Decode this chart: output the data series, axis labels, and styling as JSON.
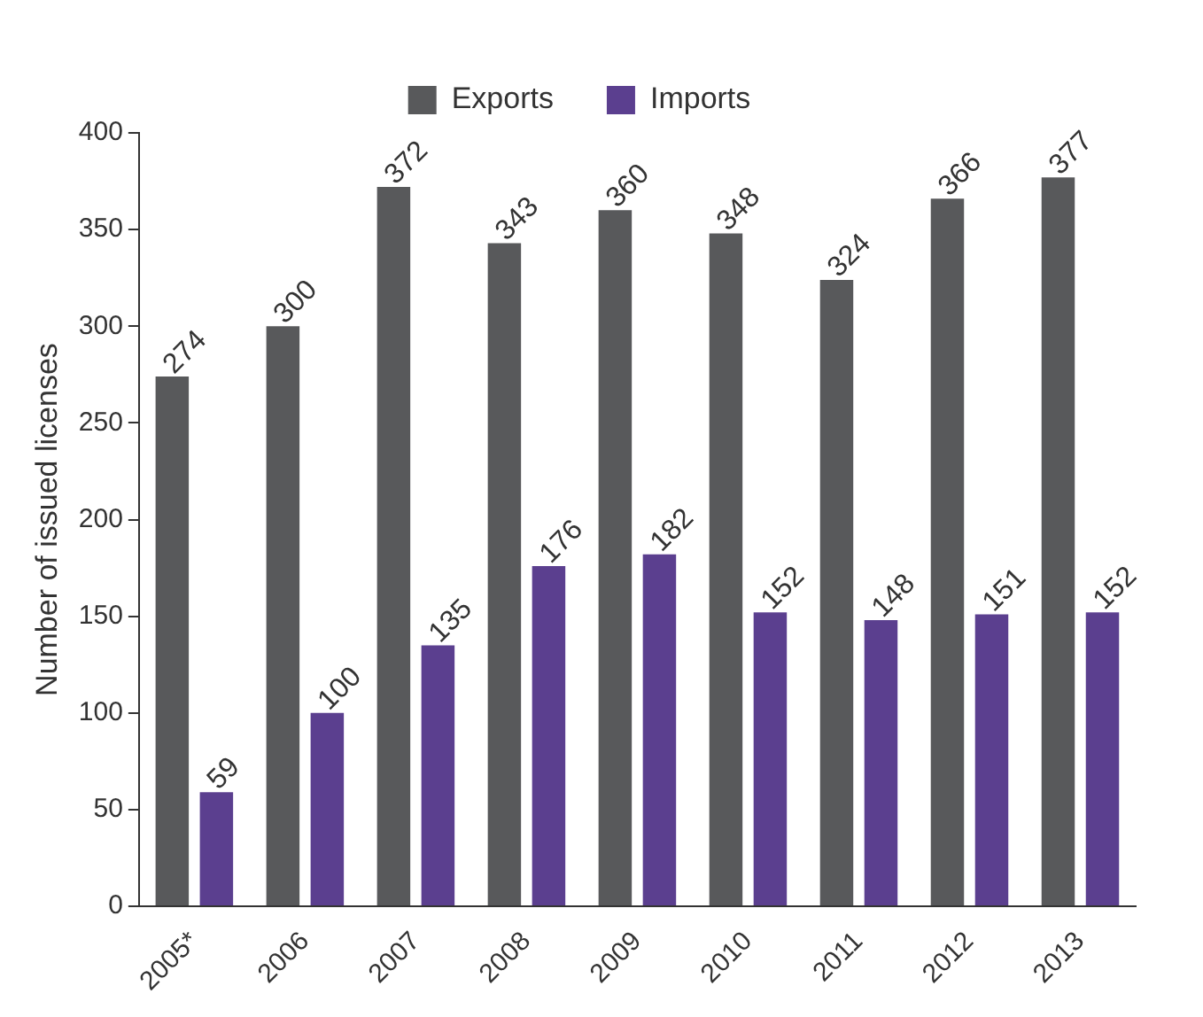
{
  "chart_data": {
    "type": "bar",
    "ylabel": "Number of issued licenses",
    "categories": [
      "2005*",
      "2006",
      "2007",
      "2008",
      "2009",
      "2010",
      "2011",
      "2012",
      "2013"
    ],
    "series": [
      {
        "name": "Exports",
        "color": "#58595b",
        "values": [
          274,
          300,
          372,
          343,
          360,
          348,
          324,
          366,
          377
        ]
      },
      {
        "name": "Imports",
        "color": "#5b3f8f",
        "values": [
          59,
          100,
          135,
          176,
          182,
          152,
          148,
          151,
          152
        ]
      }
    ],
    "ylim": [
      0,
      400
    ],
    "yticks": [
      0,
      50,
      100,
      150,
      200,
      250,
      300,
      350,
      400
    ],
    "grid": false,
    "legend": "top",
    "data_labels": true
  }
}
